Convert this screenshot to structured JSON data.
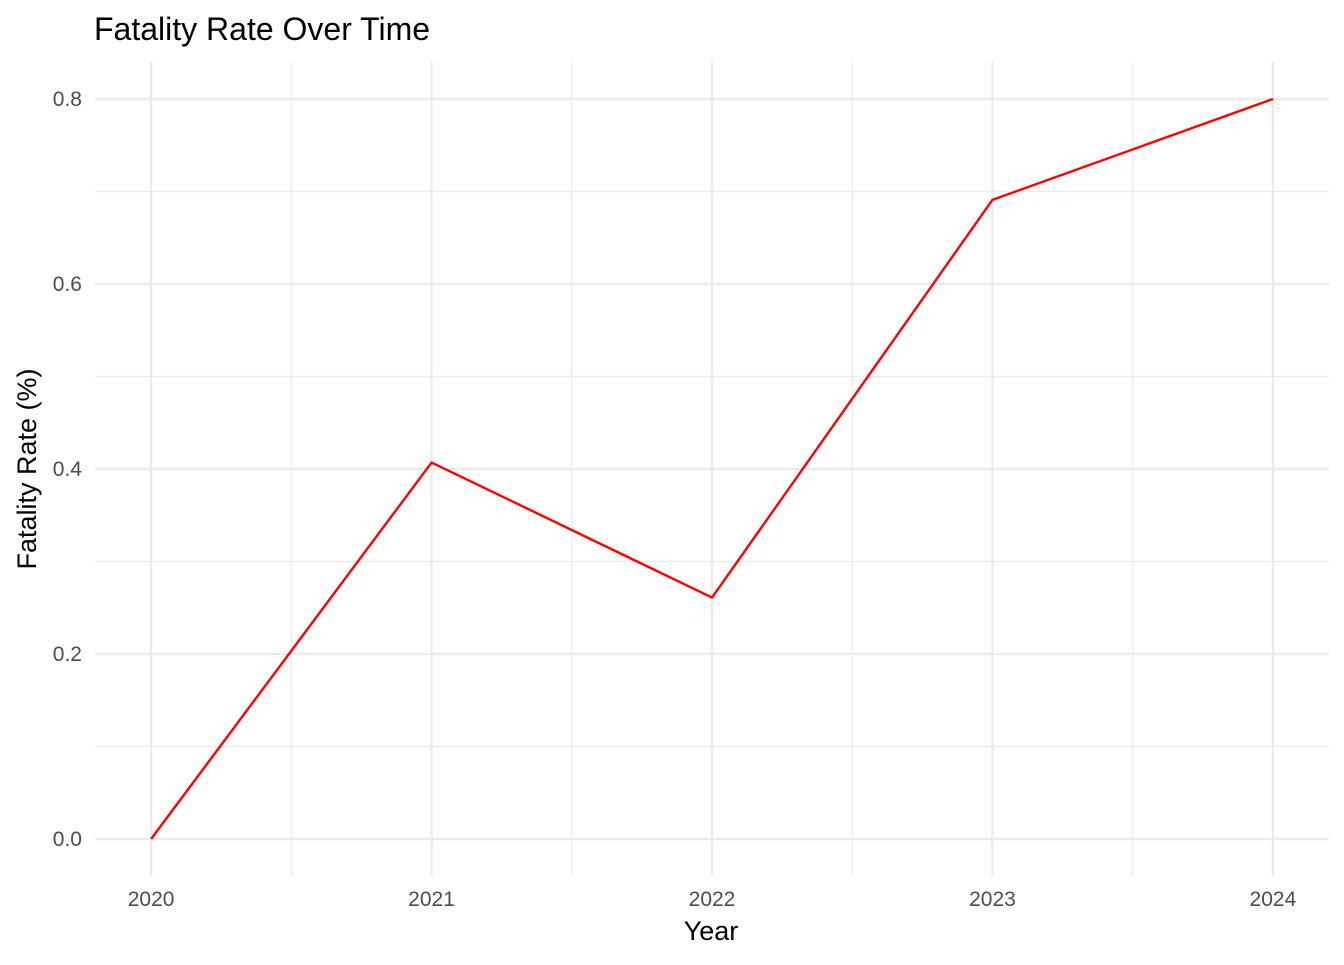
{
  "chart_data": {
    "type": "line",
    "title": "Fatality Rate Over Time",
    "xlabel": "Year",
    "ylabel": "Fatality Rate (%)",
    "x": [
      2020,
      2021,
      2022,
      2023,
      2024
    ],
    "series": [
      {
        "values": [
          0.0,
          0.407,
          0.261,
          0.691,
          0.8
        ],
        "color": "#ff0000"
      }
    ],
    "xlim": [
      2019.8,
      2024.2
    ],
    "ylim": [
      -0.04,
      0.84
    ],
    "x_ticks": [
      "2020",
      "2021",
      "2022",
      "2023",
      "2024"
    ],
    "y_ticks": [
      "0.0",
      "0.2",
      "0.4",
      "0.6",
      "0.8"
    ],
    "grid": true,
    "legend": "none"
  }
}
